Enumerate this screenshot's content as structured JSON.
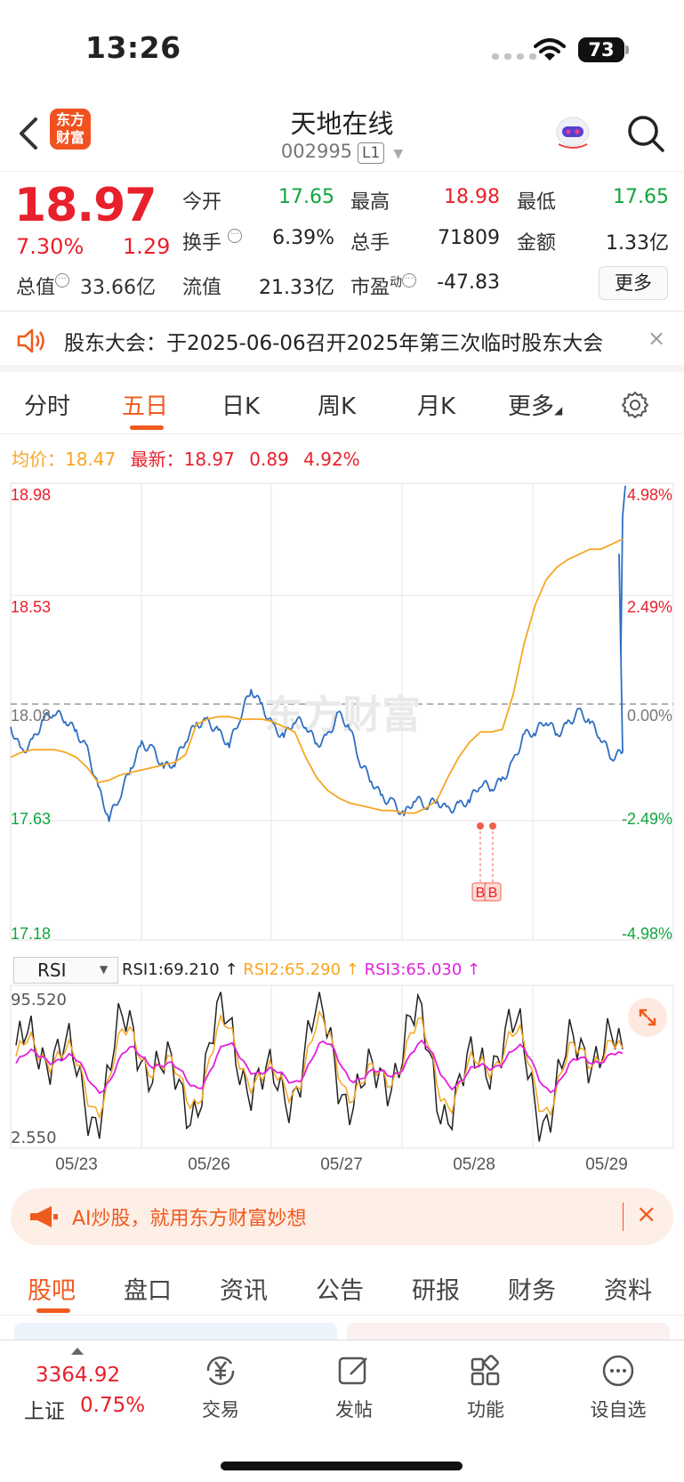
{
  "status": {
    "time": "13:26",
    "battery": "73"
  },
  "header": {
    "logo_text": "东方\n财富",
    "stock_name": "天地在线",
    "stock_code": "002995",
    "level": "L1"
  },
  "quote": {
    "price": "18.97",
    "pct": "7.30%",
    "chg": "1.29",
    "open_label": "今开",
    "open": "17.65",
    "high_label": "最高",
    "high": "18.98",
    "low_label": "最低",
    "low": "17.65",
    "turnover_label": "换手",
    "turnover": "6.39%",
    "volume_label": "总手",
    "volume": "71809",
    "amount_label": "金额",
    "amount": "1.33亿",
    "mktcap_label": "总值",
    "mktcap": "33.66亿",
    "float_label": "流值",
    "float": "21.33亿",
    "pe_label": "市盈",
    "pe_sup": "动",
    "pe": "-47.83",
    "more": "更多"
  },
  "notice": {
    "text": "股东大会：于2025-06-06召开2025年第三次临时股东大会",
    "close": "×"
  },
  "tabs": [
    "分时",
    "五日",
    "日K",
    "周K",
    "月K",
    "更多"
  ],
  "active_tab": 1,
  "avg_row": {
    "avg_label": "均价：",
    "avg": "18.47",
    "last_label": "最新：",
    "last": "18.97",
    "chg": "0.89",
    "pct": "4.92%"
  },
  "chart_data": {
    "type": "line",
    "price_axis": {
      "ticks_left": [
        "18.98",
        "18.53",
        "18.08",
        "17.63",
        "17.18"
      ],
      "ticks_right": [
        "4.98%",
        "2.49%",
        "0.00%",
        "-2.49%",
        "-4.98%"
      ],
      "ylim": [
        17.18,
        18.98
      ],
      "prev_close": 18.08
    },
    "x_labels": [
      "05/23",
      "05/26",
      "05/27",
      "05/28",
      "05/29"
    ],
    "watermark": "东方财富",
    "series": [
      {
        "name": "price",
        "color": "#2f6fc3",
        "values": [
          18.02,
          17.92,
          17.96,
          18.05,
          18.08,
          18.05,
          18.0,
          17.93,
          17.78,
          17.66,
          17.75,
          17.86,
          17.95,
          17.93,
          17.86,
          17.88,
          17.97,
          18.03,
          18.04,
          18.0,
          17.95,
          18.06,
          18.17,
          18.1,
          18.02,
          17.98,
          18.05,
          18.03,
          17.95,
          17.98,
          18.07,
          18.02,
          17.88,
          17.81,
          17.74,
          17.72,
          17.67,
          17.74,
          17.71,
          17.73,
          17.69,
          17.71,
          17.73,
          17.8,
          17.78,
          17.81,
          17.88,
          17.99,
          18.0,
          18.05,
          17.99,
          18.03,
          18.08,
          18.04,
          17.98,
          17.9,
          17.92
        ]
      },
      {
        "name": "avg",
        "color": "#f5a623",
        "values": [
          17.9,
          17.92,
          17.93,
          17.93,
          17.93,
          17.92,
          17.9,
          17.86,
          17.8,
          17.81,
          17.83,
          17.84,
          17.85,
          17.86,
          17.87,
          17.88,
          17.91,
          18.03,
          18.05,
          18.06,
          18.06,
          18.05,
          18.05,
          18.05,
          18.04,
          18.02,
          18.0,
          17.9,
          17.82,
          17.77,
          17.74,
          17.72,
          17.71,
          17.7,
          17.69,
          17.69,
          17.68,
          17.68,
          17.7,
          17.73,
          17.82,
          17.9,
          17.96,
          18.0,
          18.0,
          18.01,
          18.15,
          18.35,
          18.5,
          18.6,
          18.65,
          18.68,
          18.7,
          18.72,
          18.72,
          18.74,
          18.76
        ]
      }
    ],
    "trade_marks": [
      "B",
      "B"
    ],
    "rsi": {
      "indicator": "RSI",
      "rsi1_label": "RSI1:69.210 ↑",
      "rsi2_label": "RSI2:65.290 ↑",
      "rsi3_label": "RSI3:65.030 ↑",
      "ymax": "95.520",
      "ymin": "2.550",
      "colors": {
        "rsi1": "#222222",
        "rsi2": "#f5a623",
        "rsi3": "#e31fe0"
      }
    }
  },
  "banner": {
    "text": "AI炒股，就用东方财富妙想",
    "close": "×"
  },
  "subtabs": [
    "股吧",
    "盘口",
    "资讯",
    "公告",
    "研报",
    "财务",
    "资料"
  ],
  "bottom": {
    "index_value": "3364.92",
    "index_name": "上证",
    "index_pct": "0.75%",
    "items": [
      "交易",
      "发帖",
      "功能",
      "设自选"
    ]
  }
}
